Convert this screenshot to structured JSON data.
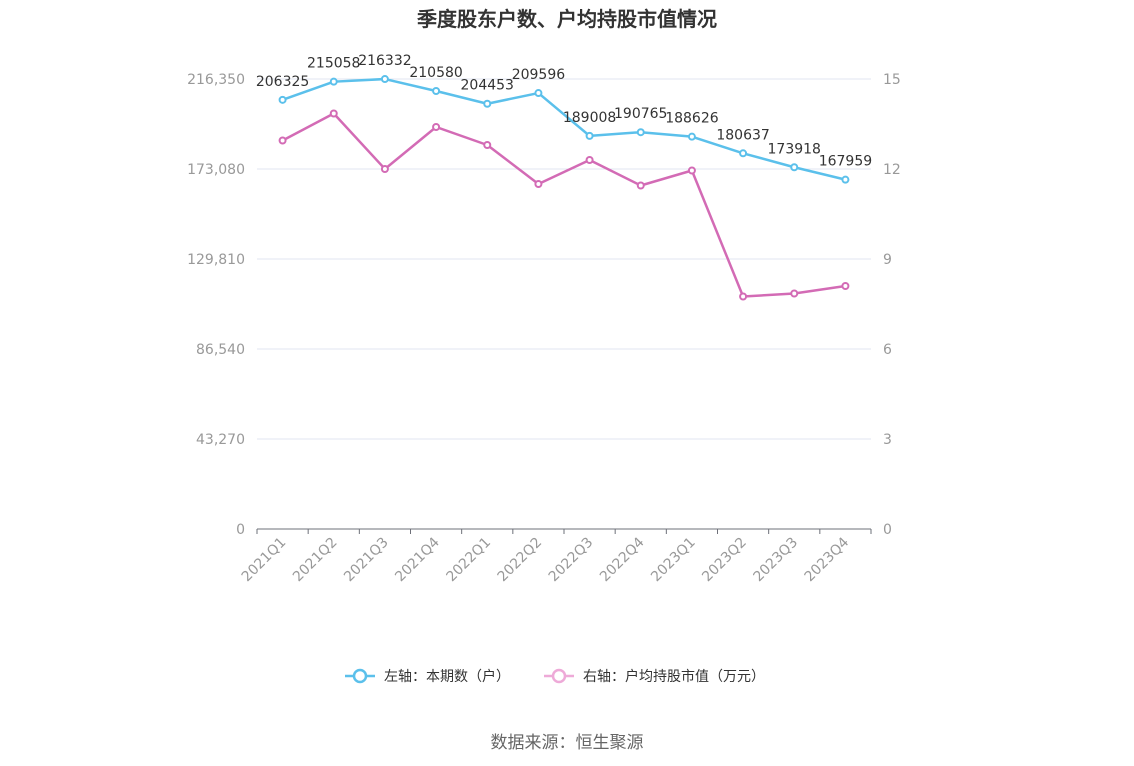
{
  "chart_data": {
    "type": "line",
    "title": "季度股东户数、户均持股市值情况",
    "categories": [
      "2021Q1",
      "2021Q2",
      "2021Q3",
      "2021Q4",
      "2022Q1",
      "2022Q2",
      "2022Q3",
      "2022Q4",
      "2023Q1",
      "2023Q2",
      "2023Q3",
      "2023Q4"
    ],
    "left_axis": {
      "ticks": [
        "0",
        "43,270",
        "86,540",
        "129,810",
        "173,080",
        "216,350"
      ],
      "ylim": [
        0,
        216350
      ]
    },
    "right_axis": {
      "ticks": [
        "0",
        "3",
        "6",
        "9",
        "12",
        "15"
      ],
      "ylim": [
        0,
        15
      ]
    },
    "grid": true,
    "legend_position": "bottom",
    "series": [
      {
        "name": "左轴：本期数（户）",
        "axis": "left",
        "color": "#5bc0eb",
        "values": [
          206325,
          215058,
          216332,
          210580,
          204453,
          209596,
          189008,
          190765,
          188626,
          180637,
          173918,
          167959
        ],
        "labels": [
          "206325",
          "215058",
          "216332",
          "210580",
          "204453",
          "209596",
          "189008",
          "190765",
          "188626",
          "180637",
          "173918",
          "167959"
        ]
      },
      {
        "name": "右轴：户均持股市值（万元）",
        "axis": "right",
        "color": "#d36bb5",
        "values": [
          12.95,
          13.85,
          12.0,
          13.4,
          12.8,
          11.5,
          12.3,
          11.45,
          11.95,
          7.75,
          7.85,
          8.1
        ]
      }
    ]
  },
  "legend": {
    "left_label": "左轴：本期数（户）",
    "right_label": "右轴：户均持股市值（万元）",
    "right_color_light": "#eeaad8"
  },
  "source": "数据来源：恒生聚源"
}
